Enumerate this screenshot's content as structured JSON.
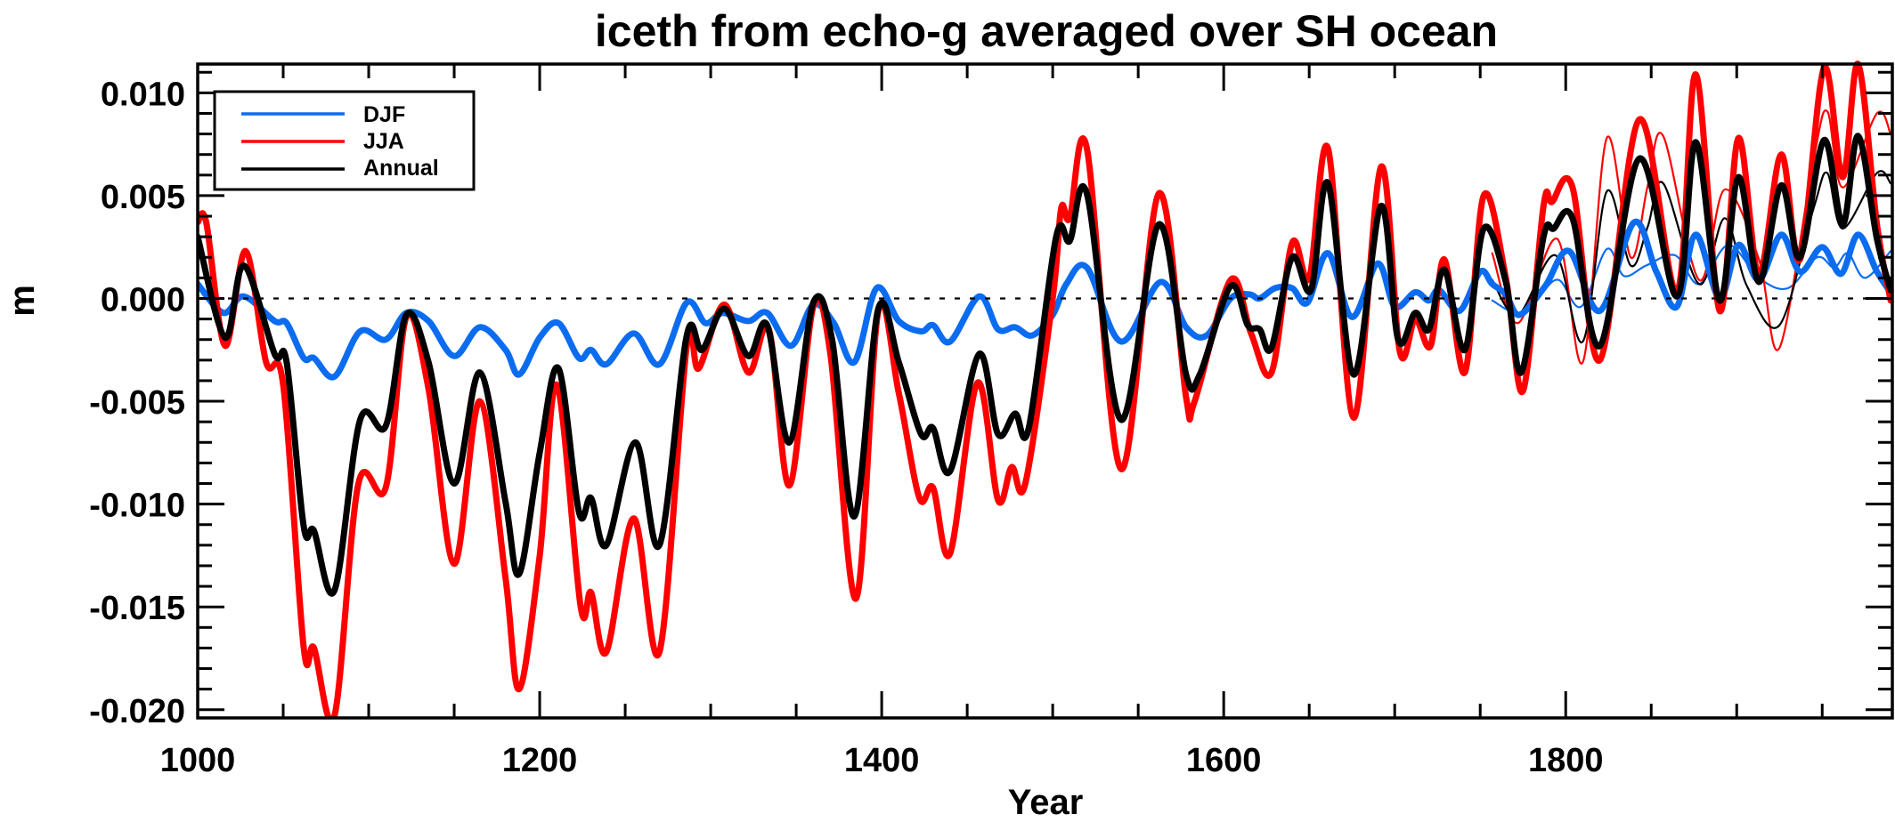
{
  "chart_data": {
    "type": "line",
    "title": "iceth from echo-g averaged over SH ocean",
    "xlabel": "Year",
    "ylabel": "m",
    "xlim": [
      1000,
      1991
    ],
    "ylim": [
      -0.0204,
      0.0114
    ],
    "x_ticks": [
      1000,
      1200,
      1400,
      1600,
      1800
    ],
    "x_tick_labels": [
      "1000",
      "1200",
      "1400",
      "1600",
      "1800"
    ],
    "x_minor_step": 50,
    "y_ticks": [
      0.01,
      0.005,
      0.0,
      -0.005,
      -0.01,
      -0.015,
      -0.02
    ],
    "y_tick_labels": [
      "0.010",
      "0.005",
      "0.000",
      "-0.005",
      "-0.010",
      "-0.015",
      "-0.020"
    ],
    "y_minor_step": 0.001,
    "grid": false,
    "reference_line": {
      "y": 0.0,
      "style": "dashed"
    },
    "legend": {
      "placement": "top-left",
      "entries": [
        {
          "label": "DJF",
          "color": "#0b6cf0"
        },
        {
          "label": "JJA",
          "color": "#ff0000"
        },
        {
          "label": "Annual",
          "color": "#000000"
        }
      ]
    },
    "series": [
      {
        "name": "DJF",
        "color": "#0b6cf0",
        "weight": "thick",
        "x": [
          1000,
          1015,
          1027,
          1045,
          1052,
          1062,
          1068,
          1080,
          1095,
          1110,
          1122,
          1135,
          1150,
          1165,
          1180,
          1188,
          1200,
          1211,
          1223,
          1230,
          1239,
          1255,
          1270,
          1286,
          1297,
          1307,
          1322,
          1333,
          1347,
          1360,
          1372,
          1384,
          1397,
          1410,
          1423,
          1430,
          1440,
          1457,
          1468,
          1478,
          1488,
          1500,
          1508,
          1520,
          1540,
          1563,
          1578,
          1590,
          1604,
          1615,
          1621,
          1630,
          1640,
          1649,
          1661,
          1675,
          1690,
          1700,
          1712,
          1720,
          1726,
          1738,
          1750,
          1757,
          1765,
          1773,
          1788,
          1802,
          1820,
          1840,
          1853,
          1865,
          1876,
          1890,
          1901,
          1913,
          1926,
          1937,
          1950,
          1961,
          1971,
          1982,
          1990
        ],
        "y": [
          0.0007,
          -0.0007,
          0.0001,
          -0.0011,
          -0.0012,
          -0.0029,
          -0.0029,
          -0.0038,
          -0.0016,
          -0.002,
          -0.0007,
          -0.0011,
          -0.0028,
          -0.0014,
          -0.0025,
          -0.0037,
          -0.0019,
          -0.0012,
          -0.0029,
          -0.0025,
          -0.0032,
          -0.0017,
          -0.0032,
          -0.0002,
          -0.0012,
          -0.0007,
          -0.0011,
          -0.0007,
          -0.0023,
          -0.0003,
          -0.0012,
          -0.0031,
          0.0005,
          -0.0011,
          -0.0016,
          -0.0013,
          -0.0021,
          0.0001,
          -0.0015,
          -0.0014,
          -0.0018,
          -0.0008,
          0.0007,
          0.0015,
          -0.0021,
          0.0008,
          -0.0014,
          -0.0018,
          0.0,
          0.0002,
          0.0,
          0.0005,
          0.0005,
          -0.0002,
          0.0022,
          -0.0009,
          0.0017,
          -0.0004,
          0.0003,
          -0.0001,
          0.0004,
          -0.0006,
          0.0013,
          0.0007,
          0.0002,
          -0.0008,
          0.0006,
          0.0023,
          -0.0006,
          0.0037,
          0.0013,
          -0.0004,
          0.0031,
          0.0,
          0.0026,
          0.0009,
          0.0031,
          0.0013,
          0.0025,
          0.0012,
          0.0031,
          0.0013,
          0.0003
        ]
      },
      {
        "name": "JJA",
        "color": "#ff0000",
        "weight": "thick",
        "x": [
          1000,
          1005,
          1016,
          1028,
          1040,
          1050,
          1062,
          1068,
          1080,
          1094,
          1110,
          1122,
          1135,
          1150,
          1165,
          1180,
          1188,
          1200,
          1210,
          1224,
          1230,
          1239,
          1255,
          1270,
          1286,
          1293,
          1308,
          1322,
          1334,
          1346,
          1360,
          1370,
          1385,
          1398,
          1410,
          1422,
          1430,
          1440,
          1456,
          1468,
          1476,
          1484,
          1500,
          1505,
          1510,
          1520,
          1540,
          1562,
          1578,
          1583,
          1604,
          1616,
          1628,
          1640,
          1650,
          1661,
          1676,
          1692,
          1703,
          1712,
          1721,
          1729,
          1741,
          1752,
          1765,
          1775,
          1787,
          1792,
          1804,
          1820,
          1843,
          1865,
          1876,
          1890,
          1901,
          1913,
          1926,
          1937,
          1951,
          1962,
          1971,
          1982,
          1990
        ],
        "y": [
          0.0037,
          0.0037,
          -0.0023,
          0.0023,
          -0.0031,
          -0.0042,
          -0.017,
          -0.017,
          -0.0203,
          -0.009,
          -0.0092,
          -0.0009,
          -0.0044,
          -0.0129,
          -0.005,
          -0.0136,
          -0.019,
          -0.0125,
          -0.0042,
          -0.015,
          -0.0143,
          -0.0172,
          -0.0107,
          -0.0172,
          -0.0023,
          -0.0034,
          -0.0003,
          -0.0036,
          -0.0015,
          -0.0091,
          -0.0004,
          -0.0027,
          -0.0146,
          -0.0006,
          -0.0046,
          -0.0097,
          -0.0092,
          -0.0124,
          -0.0041,
          -0.0098,
          -0.0082,
          -0.009,
          0.0,
          0.0044,
          0.0039,
          0.0073,
          -0.0083,
          0.0051,
          -0.0048,
          -0.005,
          0.0009,
          -0.0017,
          -0.0036,
          0.0027,
          0.001,
          0.0073,
          -0.0058,
          0.0064,
          -0.0026,
          -0.001,
          -0.0023,
          0.0019,
          -0.0036,
          0.005,
          0.001,
          -0.0045,
          0.0045,
          0.0047,
          0.0054,
          -0.003,
          0.0087,
          0.0003,
          0.0109,
          -0.0006,
          0.0078,
          0.0012,
          0.007,
          0.0019,
          0.0112,
          0.0059,
          0.0114,
          0.0036,
          -0.0001
        ]
      },
      {
        "name": "Annual",
        "color": "#000000",
        "weight": "thick",
        "x": [
          1000,
          1016,
          1027,
          1045,
          1052,
          1062,
          1068,
          1080,
          1095,
          1110,
          1122,
          1135,
          1150,
          1165,
          1180,
          1188,
          1200,
          1211,
          1223,
          1230,
          1239,
          1256,
          1270,
          1286,
          1295,
          1308,
          1322,
          1333,
          1346,
          1360,
          1371,
          1384,
          1398,
          1410,
          1423,
          1430,
          1440,
          1457,
          1468,
          1478,
          1486,
          1502,
          1510,
          1520,
          1540,
          1562,
          1578,
          1586,
          1604,
          1614,
          1621,
          1628,
          1640,
          1651,
          1661,
          1676,
          1692,
          1702,
          1712,
          1720,
          1729,
          1741,
          1752,
          1765,
          1774,
          1787,
          1793,
          1804,
          1820,
          1843,
          1865,
          1876,
          1890,
          1901,
          1913,
          1926,
          1937,
          1951,
          1962,
          1971,
          1982,
          1990
        ],
        "y": [
          0.003,
          -0.0019,
          0.0016,
          -0.0027,
          -0.0031,
          -0.0111,
          -0.0113,
          -0.0142,
          -0.0059,
          -0.0062,
          -0.0008,
          -0.0031,
          -0.009,
          -0.0036,
          -0.0099,
          -0.0134,
          -0.0075,
          -0.0034,
          -0.0104,
          -0.0097,
          -0.012,
          -0.007,
          -0.012,
          -0.0018,
          -0.0025,
          -0.0005,
          -0.0028,
          -0.0013,
          -0.007,
          -0.0002,
          -0.002,
          -0.0106,
          -0.0005,
          -0.0031,
          -0.0066,
          -0.0063,
          -0.0084,
          -0.0027,
          -0.0066,
          -0.0056,
          -0.0063,
          0.003,
          0.0028,
          0.0051,
          -0.0059,
          0.0036,
          -0.0037,
          -0.0037,
          0.0006,
          -0.0013,
          -0.0015,
          -0.0024,
          0.002,
          0.0004,
          0.0056,
          -0.0037,
          0.0045,
          -0.002,
          -0.0007,
          -0.0015,
          0.0014,
          -0.0025,
          0.0034,
          0.0008,
          -0.0036,
          0.003,
          0.0034,
          0.0039,
          -0.0023,
          0.0068,
          0.0001,
          0.0076,
          -0.0001,
          0.0059,
          0.0008,
          0.0055,
          0.002,
          0.0077,
          0.0036,
          0.0079,
          0.0029,
          0.0004
        ]
      },
      {
        "name": "DJF (thin)",
        "color": "#0b6cf0",
        "weight": "thin",
        "x": [
          1757,
          1772,
          1785,
          1796,
          1809,
          1824,
          1834,
          1847,
          1864,
          1878,
          1895,
          1913,
          1930,
          1947,
          1957,
          1965,
          1975,
          1990
        ],
        "y": [
          -0.0001,
          -0.0007,
          0.0002,
          0.0009,
          -0.0004,
          0.0024,
          0.0011,
          0.0016,
          0.0021,
          0.0007,
          0.0026,
          0.001,
          0.0005,
          0.002,
          0.0015,
          0.0022,
          0.001,
          0.0023
        ]
      },
      {
        "name": "JJA (thin)",
        "color": "#ff0000",
        "weight": "thin",
        "x": [
          1757,
          1772,
          1795,
          1810,
          1824,
          1838,
          1848,
          1857,
          1878,
          1893,
          1913,
          1925,
          1945,
          1953,
          1962,
          1982,
          1990
        ],
        "y": [
          0.0022,
          -0.0012,
          0.0029,
          -0.0031,
          0.0078,
          0.002,
          0.0055,
          0.0079,
          0.0009,
          0.0053,
          0.0019,
          -0.0024,
          0.0068,
          0.0091,
          0.0054,
          0.009,
          0.008
        ]
      },
      {
        "name": "Annual (thin)",
        "color": "#000000",
        "weight": "thin",
        "x": [
          1757,
          1772,
          1794,
          1810,
          1824,
          1838,
          1848,
          1857,
          1878,
          1893,
          1906,
          1925,
          1945,
          1953,
          1962,
          1982,
          1990
        ],
        "y": [
          0.0009,
          -0.0008,
          0.0021,
          -0.0021,
          0.0052,
          0.0016,
          0.0035,
          0.0056,
          0.0007,
          0.0039,
          0.0006,
          -0.0013,
          0.0044,
          0.0061,
          0.0034,
          0.0061,
          0.0056
        ]
      }
    ]
  }
}
